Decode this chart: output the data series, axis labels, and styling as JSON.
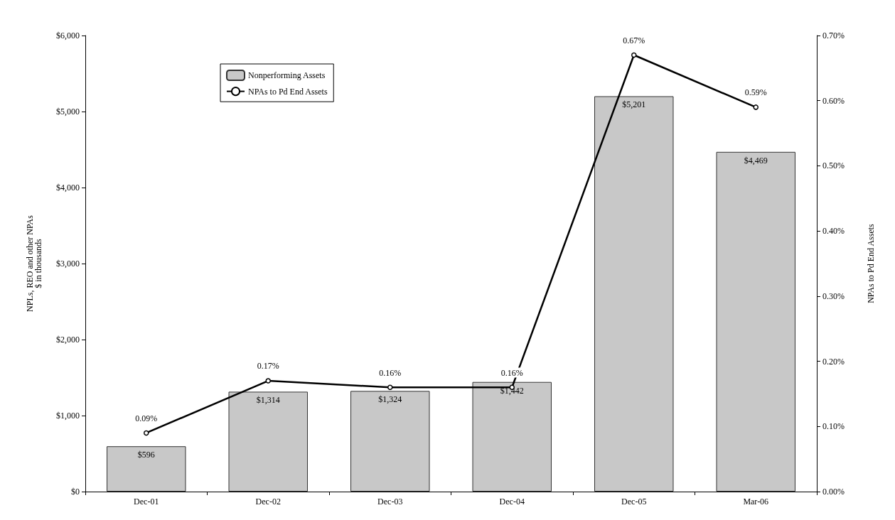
{
  "chart_data": {
    "type": "bar",
    "categories": [
      "Dec-01",
      "Dec-02",
      "Dec-03",
      "Dec-04",
      "Dec-05",
      "Mar-06"
    ],
    "ylabel": "NPLs, REO and other NPAs\n$ in thousands",
    "y2label": "NPAs to Pd End Assets",
    "series": [
      {
        "name": "Nonperforming Assets",
        "color": "#c8c8c8",
        "values": [
          596,
          1314,
          1324,
          1442,
          5201,
          4469
        ],
        "value_labels": [
          "$596",
          "$1,314",
          "$1,324",
          "$1,442",
          "$5,201",
          "$4,469"
        ]
      },
      {
        "name": "NPAs to Pd End Assets",
        "type": "line",
        "axis": "y2",
        "color": "#000000",
        "values": [
          0.09,
          0.17,
          0.16,
          0.16,
          0.67,
          0.59
        ],
        "value_labels": [
          "0.09%",
          "0.17%",
          "0.16%",
          "0.16%",
          "0.67%",
          "0.59%"
        ]
      }
    ],
    "ylim": [
      0,
      6000
    ],
    "yticks": [
      {
        "value": 0,
        "label": "$0"
      },
      {
        "value": 1000,
        "label": "$1,000"
      },
      {
        "value": 2000,
        "label": "$2,000"
      },
      {
        "value": 3000,
        "label": "$3,000"
      },
      {
        "value": 4000,
        "label": "$4,000"
      },
      {
        "value": 5000,
        "label": "$5,000"
      },
      {
        "value": 6000,
        "label": "$6,000"
      }
    ],
    "y2lim": [
      0,
      0.7
    ],
    "y2ticks": [
      {
        "value": 0,
        "label": "0.00%"
      },
      {
        "value": 0.1,
        "label": "0.10%"
      },
      {
        "value": 0.2,
        "label": "0.20%"
      },
      {
        "value": 0.3,
        "label": "0.30%"
      },
      {
        "value": 0.4,
        "label": "0.40%"
      },
      {
        "value": 0.5,
        "label": "0.50%"
      },
      {
        "value": 0.6,
        "label": "0.60%"
      },
      {
        "value": 0.7,
        "label": "0.70%"
      }
    ],
    "grid": false,
    "legend": "top left",
    "marker": "circle",
    "line_style": "solid"
  }
}
